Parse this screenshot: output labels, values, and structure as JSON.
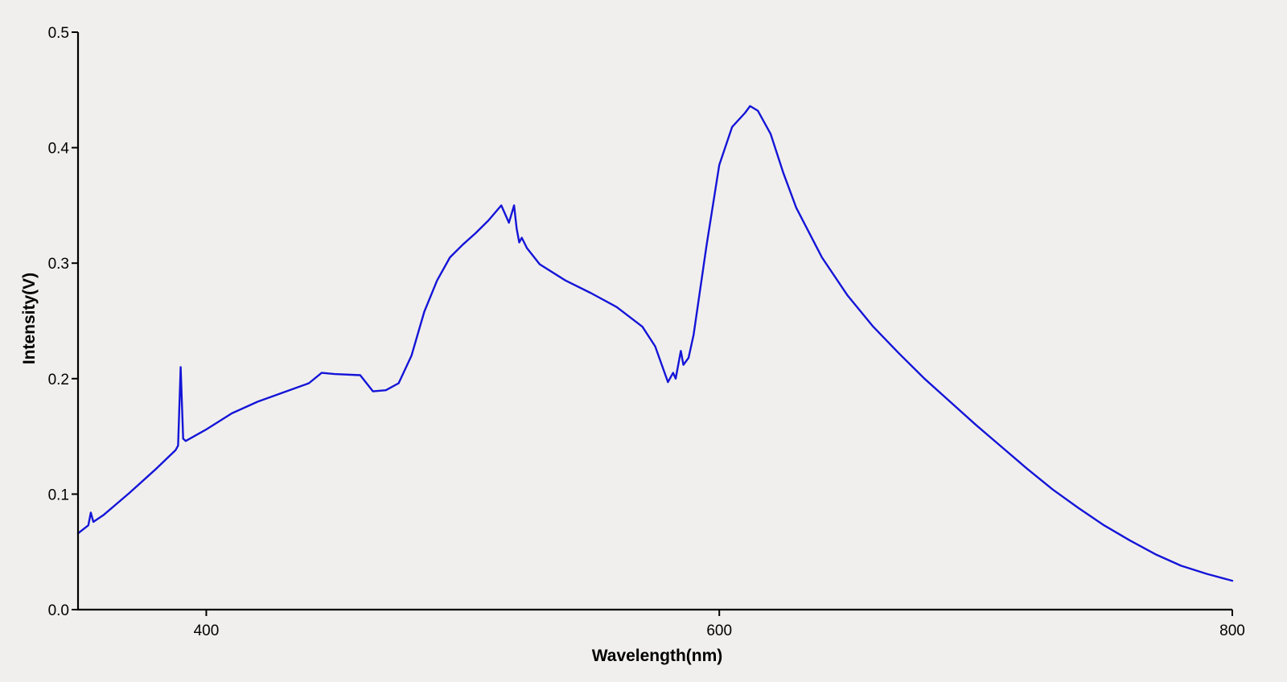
{
  "chart_data": {
    "type": "line",
    "title": "",
    "xlabel": "Wavelength(nm)",
    "ylabel": "Intensity(V)",
    "xlim": [
      350,
      800
    ],
    "ylim": [
      0,
      0.5
    ],
    "x_ticks": [
      400,
      600,
      800
    ],
    "x_tick_labels": [
      "400",
      "600",
      "800"
    ],
    "y_ticks": [
      0.0,
      0.1,
      0.2,
      0.3,
      0.4,
      0.5
    ],
    "y_tick_labels": [
      "0.0",
      "0.1",
      "0.2",
      "0.3",
      "0.4",
      "0.5"
    ],
    "grid": false,
    "legend": "none",
    "series": [
      {
        "color": "#1414d8",
        "x": [
          350,
          354,
          355,
          356,
          360,
          370,
          380,
          388,
          389,
          390,
          391,
          392,
          400,
          410,
          420,
          430,
          440,
          445,
          450,
          460,
          465,
          470,
          475,
          480,
          485,
          490,
          495,
          500,
          505,
          510,
          515,
          518,
          520,
          521,
          522,
          523,
          525,
          530,
          540,
          550,
          560,
          570,
          575,
          580,
          582,
          583,
          585,
          586,
          588,
          590,
          595,
          600,
          605,
          610,
          612,
          615,
          620,
          625,
          630,
          640,
          650,
          660,
          670,
          680,
          690,
          700,
          710,
          720,
          730,
          740,
          750,
          760,
          770,
          780,
          790,
          800
        ],
        "y": [
          0.066,
          0.073,
          0.084,
          0.076,
          0.082,
          0.101,
          0.121,
          0.138,
          0.142,
          0.21,
          0.148,
          0.146,
          0.156,
          0.17,
          0.18,
          0.188,
          0.196,
          0.205,
          0.204,
          0.203,
          0.189,
          0.19,
          0.196,
          0.22,
          0.258,
          0.285,
          0.305,
          0.316,
          0.326,
          0.337,
          0.35,
          0.335,
          0.35,
          0.33,
          0.318,
          0.322,
          0.313,
          0.299,
          0.285,
          0.274,
          0.262,
          0.245,
          0.228,
          0.197,
          0.205,
          0.2,
          0.224,
          0.212,
          0.218,
          0.238,
          0.315,
          0.385,
          0.418,
          0.43,
          0.436,
          0.432,
          0.412,
          0.378,
          0.348,
          0.305,
          0.272,
          0.245,
          0.222,
          0.2,
          0.18,
          0.16,
          0.141,
          0.122,
          0.104,
          0.088,
          0.073,
          0.06,
          0.048,
          0.038,
          0.031,
          0.025
        ]
      }
    ]
  }
}
